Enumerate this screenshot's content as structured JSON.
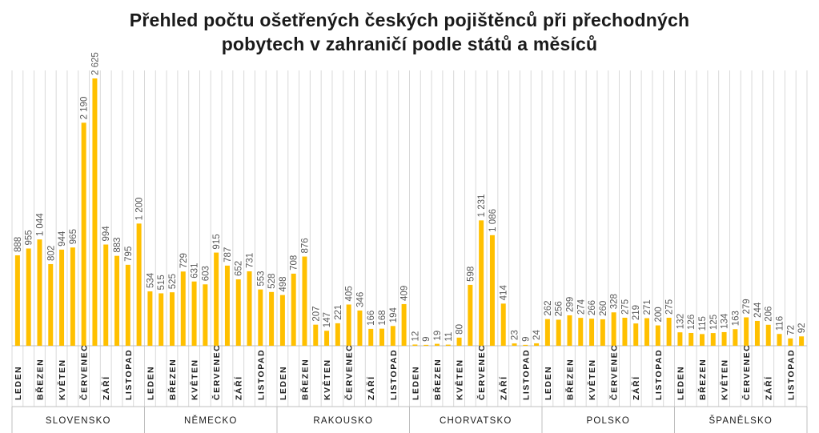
{
  "chart_data": {
    "type": "bar",
    "title_lines": [
      "Přehled počtu ošetřených českých pojištěnců při přechodných",
      "pobytech v zahraničí podle států a měsíců"
    ],
    "bar_color": "#FFC000",
    "gridline_color": "#d9d9d9",
    "grid": true,
    "ylim": [
      0,
      2800
    ],
    "month_tick_labels": [
      "LEDEN",
      "BŘEZEN",
      "KVĚTEN",
      "ČERVENEC",
      "ZÁŘÍ",
      "LISTOPAD"
    ],
    "groups": [
      {
        "name": "SLOVENSKO",
        "values": [
          888,
          955,
          1044,
          802,
          944,
          965,
          2190,
          2625,
          994,
          883,
          795,
          1200
        ],
        "labels": [
          "888",
          "955",
          "1 044",
          "802",
          "944",
          "965",
          "2 190",
          "2 625",
          "994",
          "883",
          "795",
          "1 200"
        ]
      },
      {
        "name": "NĚMECKO",
        "values": [
          534,
          515,
          525,
          729,
          631,
          603,
          915,
          787,
          652,
          731,
          553,
          528
        ],
        "labels": [
          "534",
          "515",
          "525",
          "729",
          "631",
          "603",
          "915",
          "787",
          "652",
          "731",
          "553",
          "528"
        ]
      },
      {
        "name": "RAKOUSKO",
        "values": [
          498,
          708,
          876,
          207,
          147,
          221,
          405,
          346,
          166,
          168,
          194,
          409
        ],
        "labels": [
          "498",
          "708",
          "876",
          "207",
          "147",
          "221",
          "405",
          "346",
          "166",
          "168",
          "194",
          "409"
        ]
      },
      {
        "name": "CHORVATSKO",
        "values": [
          12,
          9,
          19,
          11,
          80,
          598,
          1231,
          1086,
          414,
          23,
          9,
          24
        ],
        "labels": [
          "12",
          "9",
          "19",
          "11",
          "80",
          "598",
          "1 231",
          "1 086",
          "414",
          "23",
          "9",
          "24"
        ]
      },
      {
        "name": "POLSKO",
        "values": [
          262,
          256,
          299,
          274,
          266,
          260,
          328,
          275,
          219,
          271,
          200,
          275
        ],
        "labels": [
          "262",
          "256",
          "299",
          "274",
          "266",
          "260",
          "328",
          "275",
          "219",
          "271",
          "200",
          "275"
        ]
      },
      {
        "name": "ŠPANĚLSKO",
        "values": [
          132,
          126,
          115,
          125,
          134,
          163,
          279,
          244,
          206,
          116,
          72,
          92
        ],
        "labels": [
          "132",
          "126",
          "115",
          "125",
          "134",
          "163",
          "279",
          "244",
          "206",
          "116",
          "72",
          "92"
        ]
      }
    ]
  }
}
